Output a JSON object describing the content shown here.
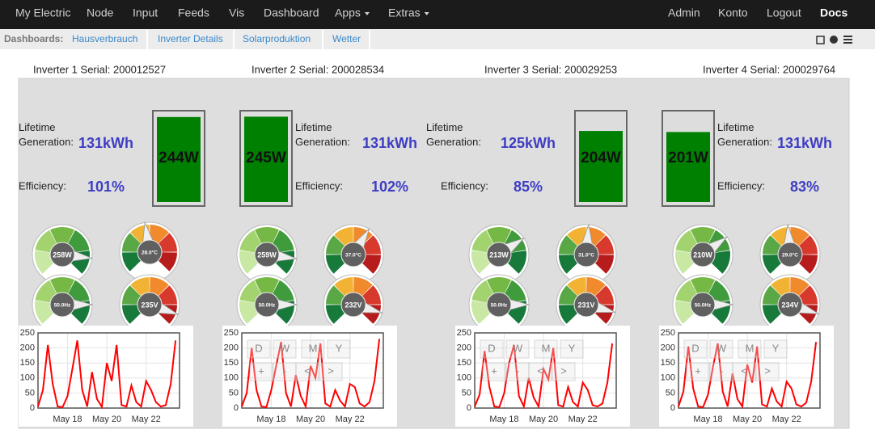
{
  "nav": {
    "left": [
      "My Electric",
      "Node",
      "Input",
      "Feeds",
      "Vis",
      "Dashboard",
      "Apps",
      "Extras"
    ],
    "right": [
      "Admin",
      "Konto",
      "Logout",
      "Docs"
    ]
  },
  "subnav": {
    "label": "Dashboards:",
    "tabs": [
      "Hausverbrauch",
      "Inverter Details",
      "Solarproduktion",
      "Wetter"
    ]
  },
  "inverters": [
    {
      "serial": "Inverter 1 Serial: 200012527",
      "lifetime_label": "Lifetime Generation:",
      "lifetime": "131kWh",
      "efficiency_label": "Efficiency:",
      "efficiency": "101%",
      "power": "244W",
      "gauges": [
        "258W",
        "28.0°C",
        "50.0Hz",
        "235V"
      ],
      "chart": {
        "type": "line",
        "color": "#ff0000",
        "xlim": [
          16.5,
          23.7
        ],
        "ylim": [
          0,
          250
        ],
        "yticks": [
          0,
          50,
          100,
          150,
          200,
          250
        ],
        "xticks": [
          {
            "value": 18,
            "label": "May 18"
          },
          {
            "value": 20,
            "label": "May 20"
          },
          {
            "value": 22,
            "label": "May 22"
          }
        ],
        "x": [
          16.5,
          16.75,
          17,
          17.25,
          17.5,
          17.75,
          18,
          18.25,
          18.5,
          18.75,
          19,
          19.25,
          19.5,
          19.75,
          20,
          20.25,
          20.5,
          20.75,
          21,
          21.25,
          21.5,
          21.75,
          22,
          22.25,
          22.5,
          22.75,
          23,
          23.25,
          23.5
        ],
        "values": [
          5,
          60,
          210,
          80,
          5,
          3,
          40,
          130,
          225,
          60,
          5,
          120,
          30,
          4,
          150,
          90,
          210,
          10,
          5,
          75,
          20,
          5,
          90,
          60,
          20,
          5,
          10,
          80,
          225
        ]
      }
    },
    {
      "serial": "Inverter 2 Serial: 200028534",
      "lifetime_label": "Lifetime Generation:",
      "lifetime": "131kWh",
      "efficiency_label": "Efficiency:",
      "efficiency": "102%",
      "power": "245W",
      "gauges": [
        "259W",
        "37.0°C",
        "50.0Hz",
        "232V"
      ],
      "chart": {
        "type": "line",
        "color": "#ff0000",
        "xlim": [
          16.5,
          23.7
        ],
        "ylim": [
          0,
          250
        ],
        "yticks": [
          0,
          50,
          100,
          150,
          200,
          250
        ],
        "xticks": [
          {
            "value": 18,
            "label": "May 18"
          },
          {
            "value": 20,
            "label": "May 20"
          },
          {
            "value": 22,
            "label": "May 22"
          }
        ],
        "controls": [
          "D",
          "W",
          "M",
          "Y",
          "+",
          "-",
          "<",
          ">"
        ],
        "x": [
          16.5,
          16.75,
          17,
          17.25,
          17.5,
          17.75,
          18,
          18.25,
          18.5,
          18.75,
          19,
          19.25,
          19.5,
          19.75,
          20,
          20.25,
          20.5,
          20.75,
          21,
          21.25,
          21.5,
          21.75,
          22,
          22.25,
          22.5,
          22.75,
          23,
          23.25,
          23.5
        ],
        "values": [
          5,
          50,
          200,
          60,
          5,
          3,
          60,
          140,
          220,
          50,
          5,
          110,
          40,
          5,
          140,
          100,
          215,
          15,
          5,
          60,
          25,
          5,
          80,
          70,
          15,
          5,
          20,
          90,
          230
        ]
      }
    },
    {
      "serial": "Inverter 3 Serial: 200029253",
      "lifetime_label": "Lifetime Generation:",
      "lifetime": "125kWh",
      "efficiency_label": "Efficiency:",
      "efficiency": "85%",
      "power": "204W",
      "gauges": [
        "213W",
        "31.0°C",
        "50.0Hz",
        "231V"
      ],
      "chart": {
        "type": "line",
        "color": "#ff0000",
        "xlim": [
          16.5,
          23.7
        ],
        "ylim": [
          0,
          250
        ],
        "yticks": [
          0,
          50,
          100,
          150,
          200,
          250
        ],
        "xticks": [
          {
            "value": 18,
            "label": "May 18"
          },
          {
            "value": 20,
            "label": "May 20"
          },
          {
            "value": 22,
            "label": "May 22"
          }
        ],
        "controls": [
          "D",
          "W",
          "M",
          "Y",
          "+",
          "-",
          "<",
          ">"
        ],
        "x": [
          16.5,
          16.75,
          17,
          17.25,
          17.5,
          17.75,
          18,
          18.25,
          18.5,
          18.75,
          19,
          19.25,
          19.5,
          19.75,
          20,
          20.25,
          20.5,
          20.75,
          21,
          21.25,
          21.5,
          21.75,
          22,
          22.25,
          22.5,
          22.75,
          23,
          23.25,
          23.5
        ],
        "values": [
          5,
          45,
          190,
          70,
          5,
          3,
          50,
          150,
          210,
          40,
          5,
          100,
          35,
          5,
          130,
          95,
          200,
          10,
          5,
          70,
          20,
          5,
          85,
          60,
          10,
          5,
          15,
          85,
          215
        ]
      }
    },
    {
      "serial": "Inverter 4 Serial: 200029764",
      "lifetime_label": "Lifetime Generation:",
      "lifetime": "131kWh",
      "efficiency_label": "Efficiency:",
      "efficiency": "83%",
      "power": "201W",
      "gauges": [
        "210W",
        "29.0°C",
        "50.0Hz",
        "234V"
      ],
      "chart": {
        "type": "line",
        "color": "#ff0000",
        "xlim": [
          16.5,
          23.7
        ],
        "ylim": [
          0,
          250
        ],
        "yticks": [
          0,
          50,
          100,
          150,
          200,
          250
        ],
        "xticks": [
          {
            "value": 18,
            "label": "May 18"
          },
          {
            "value": 20,
            "label": "May 20"
          },
          {
            "value": 22,
            "label": "May 22"
          }
        ],
        "controls": [
          "D",
          "W",
          "M",
          "Y",
          "+",
          "-",
          "<",
          ">"
        ],
        "x": [
          16.5,
          16.75,
          17,
          17.25,
          17.5,
          17.75,
          18,
          18.25,
          18.5,
          18.75,
          19,
          19.25,
          19.5,
          19.75,
          20,
          20.25,
          20.5,
          20.75,
          21,
          21.25,
          21.5,
          21.75,
          22,
          22.25,
          22.5,
          22.75,
          23,
          23.25,
          23.5
        ],
        "values": [
          5,
          55,
          205,
          65,
          5,
          3,
          45,
          135,
          215,
          55,
          5,
          115,
          30,
          5,
          145,
          85,
          205,
          12,
          5,
          65,
          22,
          5,
          88,
          65,
          12,
          5,
          18,
          88,
          220
        ]
      }
    }
  ]
}
